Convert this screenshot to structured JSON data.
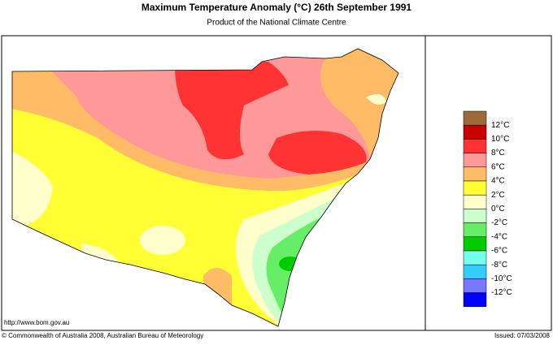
{
  "header": {
    "title": "Maximum Temperature Anomaly (°C)  26th September 1991",
    "subtitle": "Product of the National Climate Centre"
  },
  "legend": {
    "labels": [
      "12°C",
      "10°C",
      "8°C",
      "6°C",
      "4°C",
      "2°C",
      "0°C",
      "-2°C",
      "-4°C",
      "-6°C",
      "-8°C",
      "-10°C",
      "-12°C"
    ],
    "colors": [
      "#9c6a3a",
      "#c80000",
      "#ff3333",
      "#ff9999",
      "#ffbb66",
      "#ffff33",
      "#ffffcc",
      "#ccffcc",
      "#66ee66",
      "#00cc00",
      "#77ffee",
      "#33ccff",
      "#7777ff",
      "#0000ff"
    ]
  },
  "footer": {
    "url": "http://www.bom.gov.au",
    "copyright": "© Commonwealth of Australia 2008, Australian Bureau of Meteorology",
    "issued": "Issued: 07/03/2008"
  }
}
